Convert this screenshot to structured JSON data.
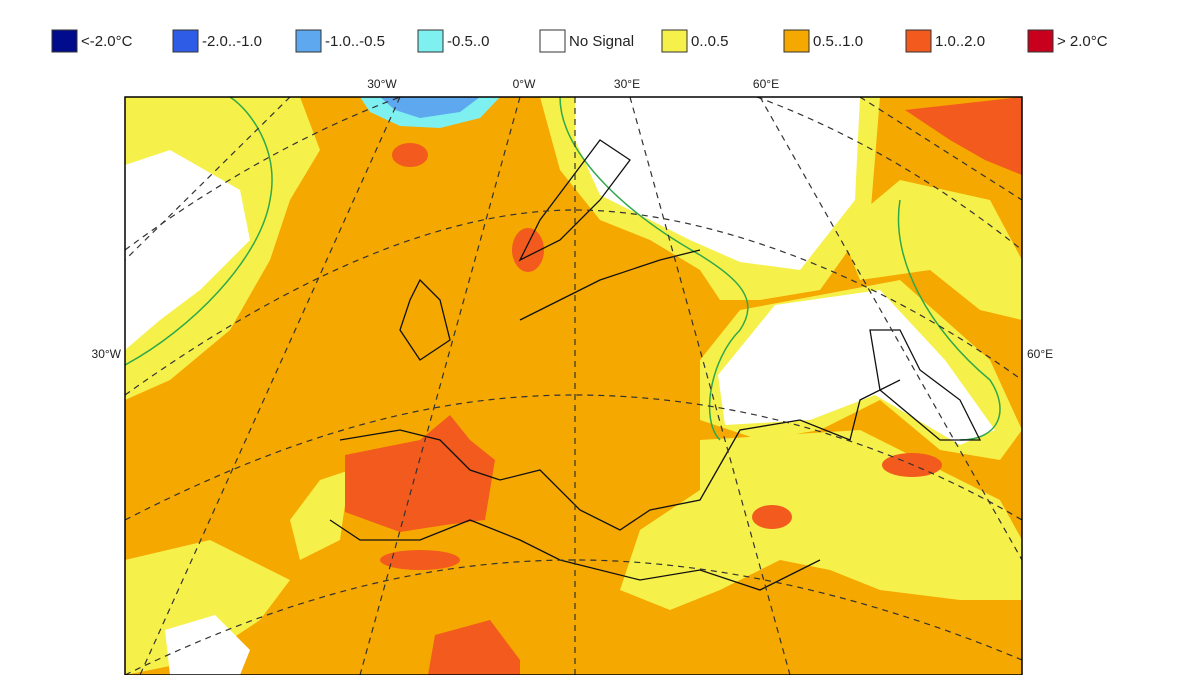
{
  "legend": [
    {
      "label": "<-2.0°C",
      "color": "#000c8c"
    },
    {
      "label": "-2.0..-1.0",
      "color": "#2e5ce6"
    },
    {
      "label": "-1.0..-0.5",
      "color": "#5ea8ef"
    },
    {
      "label": "-0.5..0",
      "color": "#7ff0f0"
    },
    {
      "label": "No Signal",
      "color": "#ffffff"
    },
    {
      "label": "0..0.5",
      "color": "#f6f04a"
    },
    {
      "label": "0.5..1.0",
      "color": "#f5a800"
    },
    {
      "label": "1.0..2.0",
      "color": "#f25a1e"
    },
    {
      "label": "> 2.0°C",
      "color": "#c8001e"
    }
  ],
  "graticule": {
    "top": [
      "30°W",
      "0°W",
      "30°E",
      "60°E"
    ],
    "left": "30°W",
    "right": "60°E"
  }
}
